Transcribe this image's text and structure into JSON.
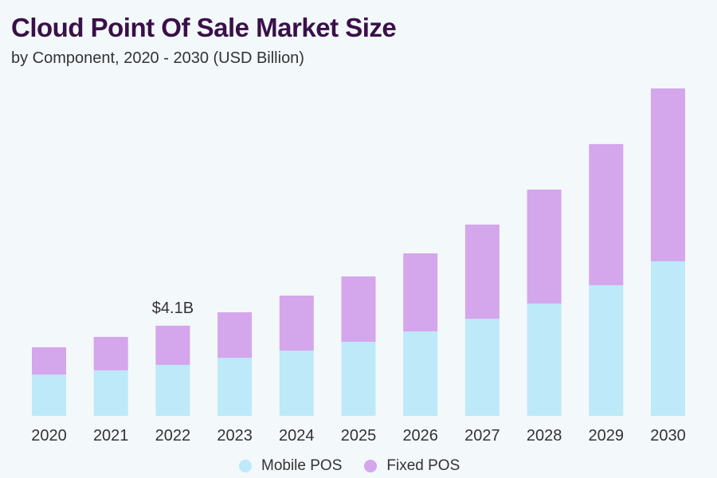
{
  "chart_data": {
    "type": "bar",
    "stacked": true,
    "title": "Cloud Point Of Sale Market Size",
    "subtitle": "by Component, 2020 - 2030 (USD Billion)",
    "xlabel": "",
    "ylabel": "",
    "categories": [
      "2020",
      "2021",
      "2022",
      "2023",
      "2024",
      "2025",
      "2026",
      "2027",
      "2028",
      "2029",
      "2030"
    ],
    "series": [
      {
        "name": "Mobile POS",
        "color": "#bde9f9",
        "values": [
          1.88,
          2.07,
          2.32,
          2.64,
          2.97,
          3.37,
          3.84,
          4.42,
          5.11,
          5.94,
          7.03
        ]
      },
      {
        "name": "Fixed POS",
        "color": "#d4a6ec",
        "values": [
          1.24,
          1.52,
          1.78,
          2.07,
          2.5,
          2.97,
          3.55,
          4.28,
          5.18,
          6.42,
          7.86
        ]
      }
    ],
    "annotations": [
      {
        "category": "2022",
        "text": "$4.1B"
      }
    ],
    "ylim": [
      0,
      15
    ],
    "grid": false,
    "legend": "bottom-center"
  }
}
